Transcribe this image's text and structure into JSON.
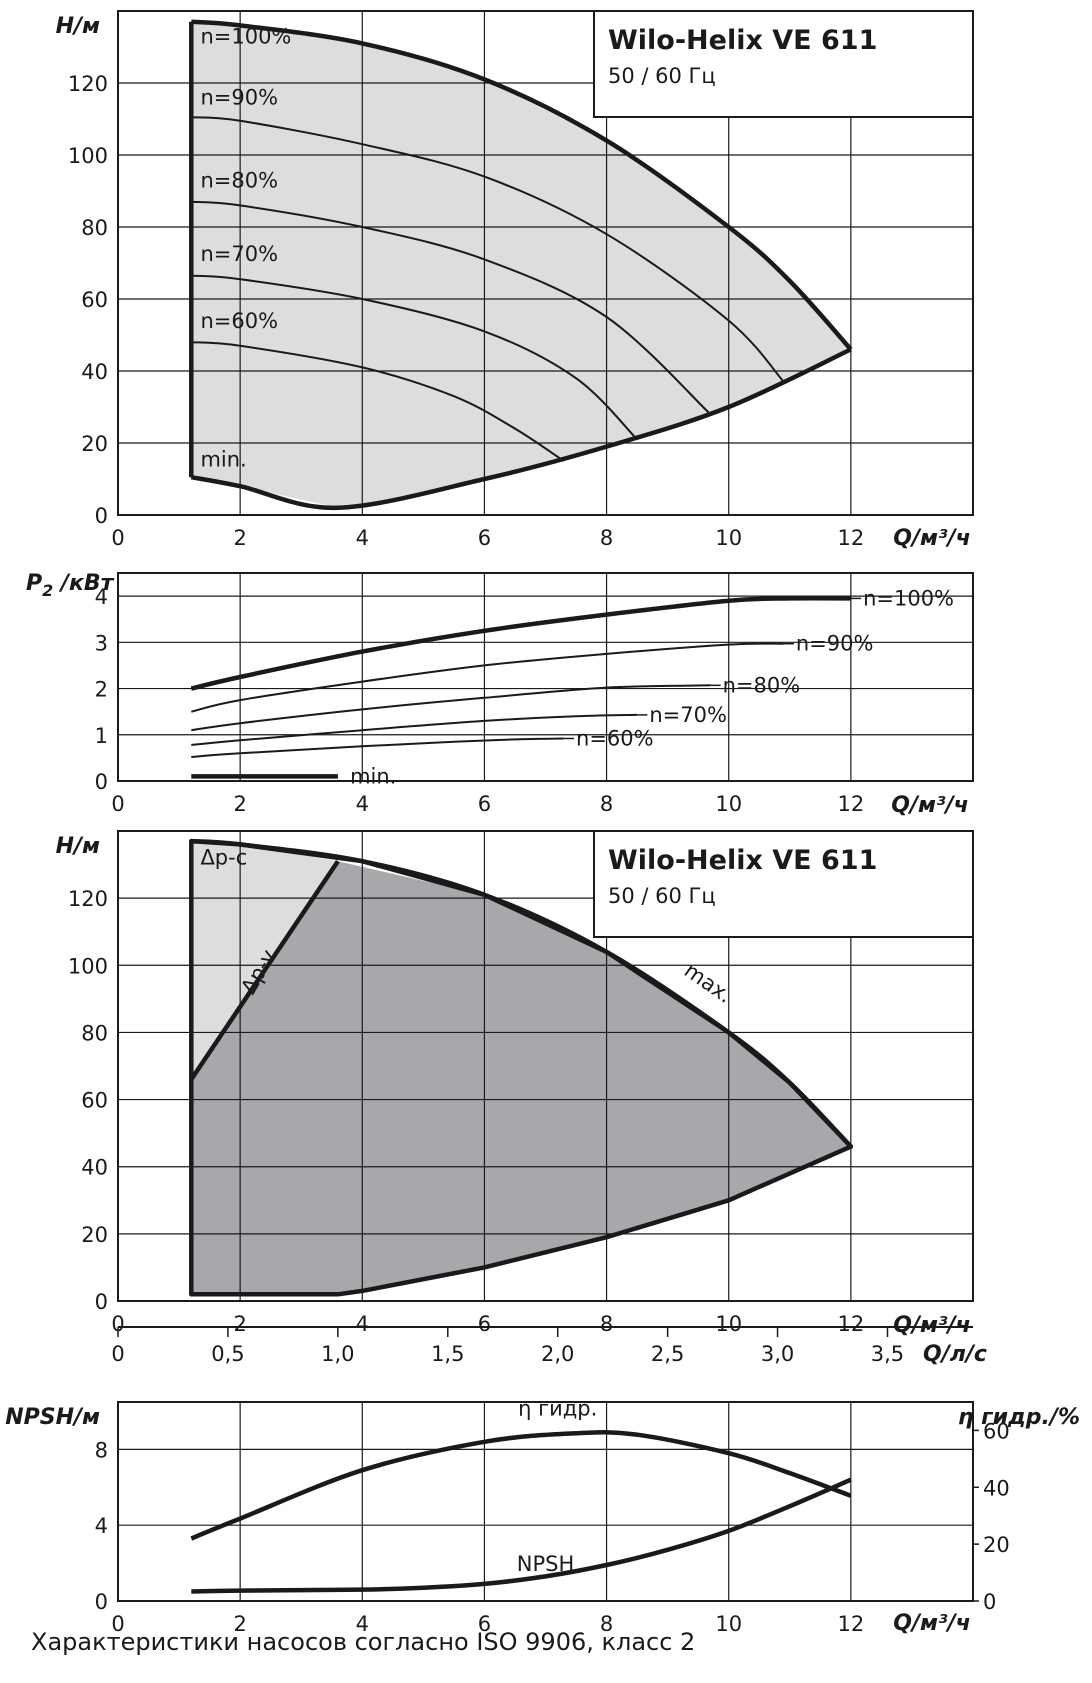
{
  "caption": "Характеристики насосов согласно ISO 9906, класс 2",
  "colors": {
    "grid": "#1a1a1a",
    "curve": "#1a1a1a",
    "fill_light": "#dcdddf",
    "fill_dark": "#a7a8ab",
    "background": "#ffffff"
  },
  "chart_data": [
    {
      "id": "head",
      "type": "line",
      "title": "Wilo-Helix VE 611",
      "subtitle": "50 / 60 Гц",
      "xlabel": "Q/м³/ч",
      "ylabel": "H/м",
      "xlim": [
        0,
        14
      ],
      "ylim": [
        0,
        140
      ],
      "xticks": [
        "0",
        "2",
        "4",
        "6",
        "8",
        "10",
        "12"
      ],
      "yticks": [
        "0",
        "20",
        "40",
        "60",
        "80",
        "100",
        "120"
      ],
      "grid": true,
      "operating_area": [
        [
          1.2,
          137
        ],
        [
          2,
          136
        ],
        [
          4,
          131
        ],
        [
          6,
          121
        ],
        [
          8,
          104
        ],
        [
          10,
          80
        ],
        [
          11,
          65
        ],
        [
          12,
          46
        ],
        [
          10,
          30
        ],
        [
          8,
          19
        ],
        [
          6,
          10
        ],
        [
          4,
          3
        ],
        [
          3.6,
          2
        ],
        [
          2,
          8
        ],
        [
          1.2,
          10.5
        ]
      ],
      "series": [
        {
          "name": "n=100%",
          "x": [
            1.2,
            2,
            4,
            6,
            8,
            10,
            11,
            12
          ],
          "y": [
            137,
            136,
            131,
            121,
            104,
            80,
            65,
            46
          ],
          "bold": true
        },
        {
          "name": "n=90%",
          "x": [
            1.2,
            2,
            4,
            6,
            8,
            10,
            10.9
          ],
          "y": [
            110.5,
            109.5,
            103,
            94,
            78,
            54,
            37
          ]
        },
        {
          "name": "n=80%",
          "x": [
            1.2,
            2,
            4,
            6,
            8,
            9.7
          ],
          "y": [
            87,
            86,
            80,
            71,
            55,
            28
          ]
        },
        {
          "name": "n=70%",
          "x": [
            1.2,
            2,
            4,
            6,
            7.5,
            8.5
          ],
          "y": [
            66.5,
            65.5,
            60,
            51,
            38,
            21
          ]
        },
        {
          "name": "n=60%",
          "x": [
            1.2,
            2,
            4,
            5.5,
            6.5,
            7.3
          ],
          "y": [
            48,
            47,
            41,
            33,
            24,
            15
          ]
        },
        {
          "name": "min.",
          "x": [
            1.2,
            2,
            3.6,
            6,
            8,
            10,
            12
          ],
          "y": [
            10.5,
            8,
            2,
            10,
            19,
            30,
            46
          ],
          "bold": true
        }
      ]
    },
    {
      "id": "power",
      "type": "line",
      "xlabel": "Q/м³/ч",
      "ylabel": "P2 /кВт",
      "xlim": [
        0,
        14
      ],
      "ylim": [
        0,
        4.5
      ],
      "xticks": [
        "0",
        "2",
        "4",
        "6",
        "8",
        "10",
        "12"
      ],
      "yticks": [
        "0",
        "1",
        "2",
        "3",
        "4"
      ],
      "grid": true,
      "series": [
        {
          "name": "n=100%",
          "x": [
            1.2,
            2,
            4,
            6,
            8,
            10,
            11,
            12
          ],
          "y": [
            2.0,
            2.25,
            2.8,
            3.25,
            3.6,
            3.9,
            3.95,
            3.95
          ],
          "bold": true
        },
        {
          "name": "n=90%",
          "x": [
            1.2,
            2,
            4,
            6,
            8,
            10,
            10.9
          ],
          "y": [
            1.5,
            1.75,
            2.15,
            2.5,
            2.75,
            2.95,
            2.97
          ]
        },
        {
          "name": "n=80%",
          "x": [
            1.2,
            2,
            4,
            6,
            8,
            9.7
          ],
          "y": [
            1.1,
            1.25,
            1.55,
            1.8,
            2.02,
            2.07
          ]
        },
        {
          "name": "n=70%",
          "x": [
            1.2,
            2,
            4,
            6,
            7.5,
            8.5
          ],
          "y": [
            0.78,
            0.88,
            1.1,
            1.3,
            1.4,
            1.43
          ]
        },
        {
          "name": "n=60%",
          "x": [
            1.2,
            2,
            4,
            5.5,
            6.5,
            7.3
          ],
          "y": [
            0.52,
            0.6,
            0.75,
            0.85,
            0.9,
            0.92
          ]
        },
        {
          "name": "min.",
          "x": [
            1.2,
            3.6
          ],
          "y": [
            0.1,
            0.1
          ],
          "bold": true
        }
      ]
    },
    {
      "id": "control",
      "type": "area",
      "title": "Wilo-Helix VE 611",
      "subtitle": "50 / 60 Гц",
      "xlabel": "Q/м³/ч",
      "ylabel": "H/м",
      "xlim": [
        0,
        14
      ],
      "ylim": [
        0,
        140
      ],
      "xticks": [
        "0",
        "2",
        "4",
        "6",
        "8",
        "10",
        "12"
      ],
      "yticks": [
        "0",
        "20",
        "40",
        "60",
        "80",
        "100",
        "120"
      ],
      "grid": true,
      "regions": [
        {
          "name": "Δp-c",
          "points": [
            [
              1.2,
              137
            ],
            [
              2,
              136
            ],
            [
              3.6,
              131
            ],
            [
              1.2,
              66
            ]
          ]
        },
        {
          "name": "Δp-v",
          "points": [
            [
              1.2,
              66
            ],
            [
              3.6,
              131
            ],
            [
              6,
              121
            ],
            [
              8,
              104
            ],
            [
              10,
              80
            ],
            [
              11,
              65
            ],
            [
              12,
              46
            ],
            [
              10,
              30
            ],
            [
              8,
              19
            ],
            [
              6,
              10
            ],
            [
              4,
              3
            ],
            [
              3.6,
              2
            ],
            [
              1.2,
              2
            ]
          ]
        }
      ],
      "series": [
        {
          "name": "max.",
          "x": [
            1.2,
            2,
            4,
            6,
            8,
            10,
            11,
            12
          ],
          "y": [
            137,
            136,
            131,
            121,
            104,
            80,
            65,
            46
          ]
        },
        {
          "name": "Δp-v",
          "x": [
            1.2,
            3.6
          ],
          "y": [
            66,
            131
          ]
        }
      ]
    },
    {
      "id": "npsh",
      "type": "line",
      "xlabel": "Q/м³/ч",
      "ylabel": "NPSH/м",
      "ylabel_right": "η гидр./%",
      "x2label": "Q/л/с",
      "xlim": [
        0,
        14
      ],
      "ylim": [
        0,
        10.5
      ],
      "ylim_right": [
        0,
        70
      ],
      "x2lim": [
        0,
        3.889
      ],
      "xticks": [
        "0",
        "2",
        "4",
        "6",
        "8",
        "10",
        "12"
      ],
      "yticks": [
        "0",
        "4",
        "8"
      ],
      "yticks_right": [
        "0",
        "20",
        "40",
        "60"
      ],
      "x2ticks": [
        "0",
        "0,5",
        "1,0",
        "1,5",
        "2,0",
        "2,5",
        "3,0",
        "3,5"
      ],
      "grid": true,
      "series": [
        {
          "name": "η гидр.",
          "axis": "right",
          "x": [
            1.2,
            2,
            4,
            6,
            7.5,
            8.5,
            10,
            11,
            12
          ],
          "y": [
            22,
            29,
            46,
            56,
            59,
            58.5,
            52,
            45,
            37
          ]
        },
        {
          "name": "NPSH",
          "axis": "left",
          "x": [
            1.2,
            2,
            4,
            5,
            6,
            7,
            8,
            9,
            10,
            11,
            12
          ],
          "y": [
            0.5,
            0.55,
            0.6,
            0.7,
            0.9,
            1.3,
            1.9,
            2.7,
            3.7,
            5.0,
            6.4
          ]
        }
      ]
    }
  ]
}
